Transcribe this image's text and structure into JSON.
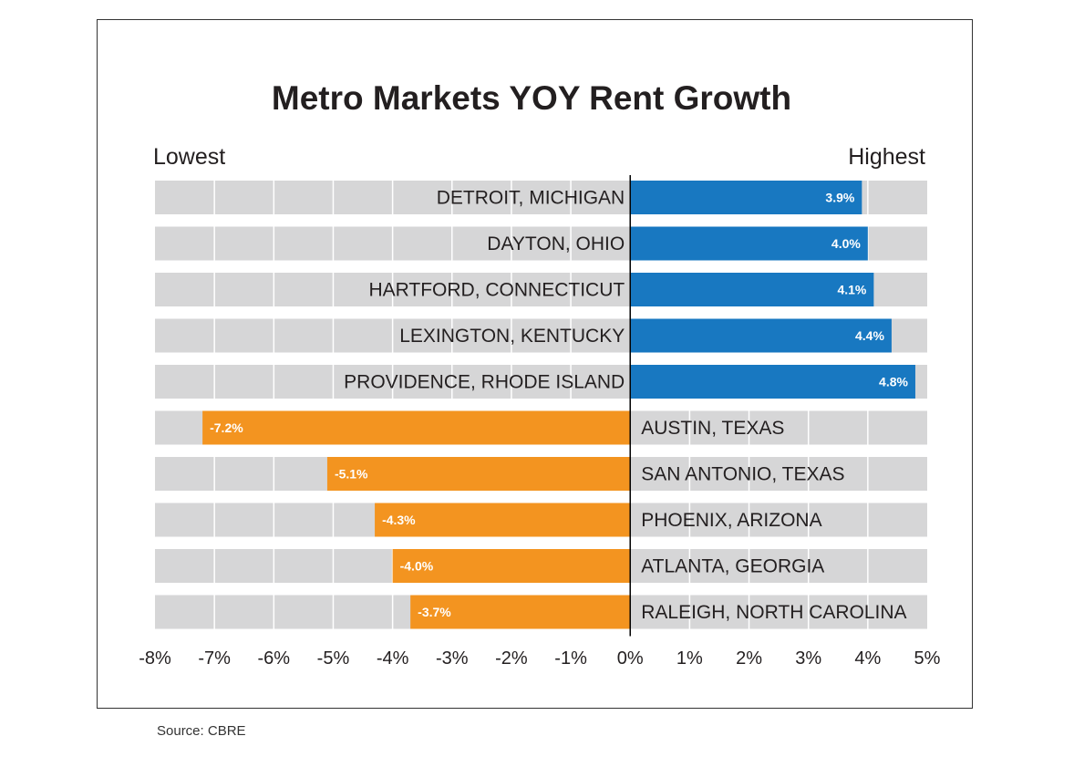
{
  "chart_data": {
    "type": "bar",
    "orientation": "horizontal",
    "title": "Metro Markets YOY Rent Growth",
    "left_label": "Lowest",
    "right_label": "Highest",
    "xlim": [
      -8,
      5
    ],
    "x_ticks": [
      "-8%",
      "-7%",
      "-6%",
      "-5%",
      "-4%",
      "-3%",
      "-2%",
      "-1%",
      "0%",
      "1%",
      "2%",
      "3%",
      "4%",
      "5%"
    ],
    "categories": [
      "DETROIT, MICHIGAN",
      "DAYTON, OHIO",
      "HARTFORD, CONNECTICUT",
      "LEXINGTON, KENTUCKY",
      "PROVIDENCE, RHODE ISLAND",
      "AUSTIN, TEXAS",
      "SAN ANTONIO, TEXAS",
      "PHOENIX, ARIZONA",
      "ATLANTA, GEORGIA",
      "RALEIGH, NORTH CAROLINA"
    ],
    "values": [
      3.9,
      4.0,
      4.1,
      4.4,
      4.8,
      -7.2,
      -5.1,
      -4.3,
      -4.0,
      -3.7
    ],
    "value_labels": [
      "3.9%",
      "4.0%",
      "4.1%",
      "4.4%",
      "4.8%",
      "-7.2%",
      "-5.1%",
      "-4.3%",
      "-4.0%",
      "-3.7%"
    ],
    "colors": {
      "positive": "#1878c1",
      "negative": "#f39420",
      "track": "#d6d6d7",
      "grid": "#ffffff",
      "zero_line": "#000000",
      "text": "#231f20"
    }
  },
  "source": "Source: CBRE"
}
